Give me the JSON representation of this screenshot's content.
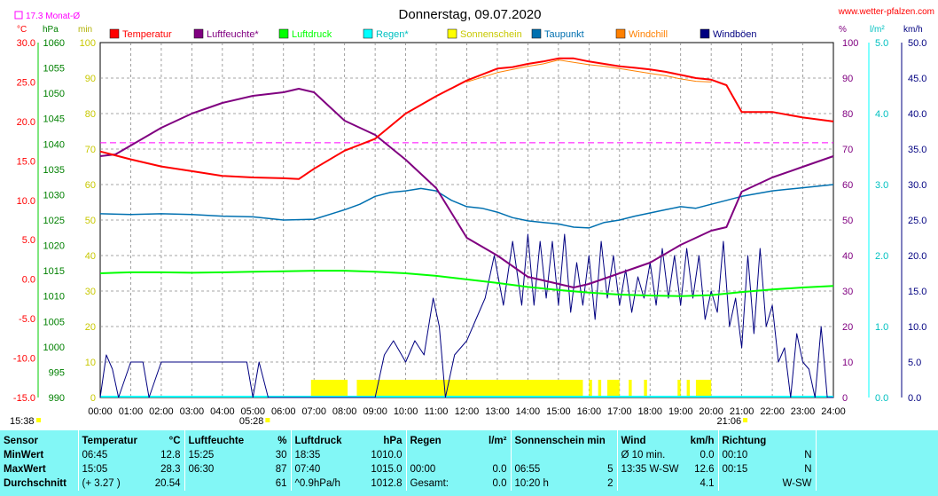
{
  "header": {
    "title": "Donnerstag, 09.07.2020",
    "website": "www.wetter-pfalzen.com",
    "monthly_avg": "17.3 Monat-Ø"
  },
  "chart_data": {
    "type": "line",
    "title": "Donnerstag, 09.07.2020",
    "x_ticks": [
      "00:00",
      "01:00",
      "02:00",
      "03:00",
      "04:00",
      "05:00",
      "06:00",
      "07:00",
      "08:00",
      "09:00",
      "10:00",
      "11:00",
      "12:00",
      "13:00",
      "14:00",
      "15:00",
      "16:00",
      "17:00",
      "18:00",
      "19:00",
      "20:00",
      "21:00",
      "22:00",
      "23:00",
      "24:00"
    ],
    "sunrise": "05:28",
    "sunset": "21:06",
    "last_update": "15:38",
    "axes": {
      "temp": {
        "unit": "°C",
        "range": [
          -15,
          30
        ],
        "ticks": [
          "30.0",
          "25.0",
          "20.0",
          "15.0",
          "10.0",
          "5.0",
          "0.0",
          "-5.0",
          "-10.0",
          "-15.0"
        ],
        "color": "#ff0000"
      },
      "pressure": {
        "unit": "hPa",
        "range": [
          990,
          1060
        ],
        "ticks": [
          "1060",
          "1055",
          "1050",
          "1045",
          "1040",
          "1035",
          "1030",
          "1025",
          "1020",
          "1015",
          "1010",
          "1005",
          "1000",
          "995",
          "990"
        ],
        "color": "#00b000"
      },
      "minutes": {
        "unit": "min",
        "range": [
          0,
          100
        ],
        "ticks": [
          "100",
          "90",
          "80",
          "70",
          "60",
          "50",
          "40",
          "30",
          "20",
          "10",
          "0"
        ],
        "color": "#b0b000"
      },
      "humidity": {
        "unit": "%",
        "range": [
          0,
          100
        ],
        "ticks": [
          "100",
          "90",
          "80",
          "70",
          "60",
          "50",
          "40",
          "30",
          "20",
          "10",
          "0"
        ],
        "color": "#800080"
      },
      "rain": {
        "unit": "l/m²",
        "range": [
          0,
          5
        ],
        "ticks": [
          "5.0",
          "4.0",
          "3.0",
          "2.0",
          "1.0",
          "0.0"
        ],
        "color": "#00c0c0"
      },
      "wind": {
        "unit": "km/h",
        "range": [
          0,
          50
        ],
        "ticks": [
          "50.0",
          "45.0",
          "40.0",
          "35.0",
          "30.0",
          "25.0",
          "20.0",
          "15.0",
          "10.0",
          "5.0",
          "0.0"
        ],
        "color": "#000080"
      }
    },
    "legend": [
      {
        "name": "Temperatur",
        "color": "#ff0000"
      },
      {
        "name": "Luftfeuchte*",
        "color": "#800080"
      },
      {
        "name": "Luftdruck",
        "color": "#00ff00"
      },
      {
        "name": "Regen*",
        "color": "#00ffff"
      },
      {
        "name": "Sonnenschein",
        "color": "#ffff00"
      },
      {
        "name": "Taupunkt",
        "color": "#0070b0"
      },
      {
        "name": "Windchill",
        "color": "#ff8000"
      },
      {
        "name": "Windböen",
        "color": "#000080"
      }
    ],
    "month_avg_temp": 17.3,
    "series": [
      {
        "name": "Temperatur",
        "axis": "temp",
        "color": "#ff0000",
        "x": [
          0,
          1,
          2,
          3,
          4,
          5,
          6,
          6.5,
          7,
          8,
          9,
          10,
          11,
          12,
          13,
          13.5,
          14,
          14.5,
          15,
          15.5,
          16,
          16.5,
          17,
          17.5,
          18,
          18.5,
          19,
          19.5,
          20,
          20.5,
          21,
          22,
          23,
          24
        ],
        "y": [
          16.2,
          15.2,
          14.3,
          13.7,
          13.1,
          12.9,
          12.8,
          12.7,
          14.0,
          16.3,
          17.8,
          21.0,
          23.2,
          25.2,
          26.7,
          26.9,
          27.3,
          27.6,
          28.0,
          28.0,
          27.6,
          27.3,
          27.0,
          26.8,
          26.6,
          26.3,
          25.9,
          25.5,
          25.3,
          24.6,
          21.2,
          21.2,
          20.5,
          20.0
        ]
      },
      {
        "name": "Windchill",
        "axis": "temp",
        "color": "#ff8000",
        "x": [
          12,
          13,
          14,
          14.5,
          15,
          15.5,
          16,
          16.5,
          17,
          17.5,
          18,
          18.5,
          19,
          19.5,
          20
        ],
        "y": [
          25.0,
          26.2,
          27.0,
          27.3,
          27.8,
          27.5,
          27.2,
          27.0,
          26.7,
          26.4,
          26.1,
          25.8,
          25.4,
          25.1,
          25.0
        ]
      },
      {
        "name": "Luftfeuchte*",
        "axis": "humidity",
        "color": "#800080",
        "x": [
          0,
          0.5,
          1,
          2,
          3,
          4,
          5,
          6,
          6.5,
          7,
          7.5,
          8,
          9,
          10,
          11,
          11.5,
          12,
          13,
          14,
          15,
          15.5,
          16,
          17,
          18,
          19,
          20,
          20.5,
          21,
          22,
          23,
          24
        ],
        "y": [
          68,
          68.5,
          71,
          76,
          80,
          83,
          85,
          86,
          87,
          86,
          82,
          78,
          74,
          67,
          59,
          52,
          45,
          40,
          34,
          32,
          31,
          32,
          35,
          38,
          43,
          47,
          48,
          58,
          62,
          65,
          68
        ]
      },
      {
        "name": "Luftdruck",
        "axis": "pressure",
        "color": "#00ff00",
        "x": [
          0,
          1,
          2,
          3,
          4,
          5,
          6,
          7,
          8,
          9,
          10,
          11,
          12,
          13,
          14,
          15,
          16,
          17,
          18,
          19,
          20,
          21,
          22,
          23,
          24
        ],
        "y": [
          1014.5,
          1014.7,
          1014.7,
          1014.6,
          1014.7,
          1014.8,
          1014.9,
          1015.0,
          1015.0,
          1014.8,
          1014.5,
          1014.0,
          1013.3,
          1012.6,
          1011.8,
          1011.2,
          1010.7,
          1010.3,
          1010.1,
          1010.0,
          1010.2,
          1010.8,
          1011.3,
          1011.7,
          1012.0
        ]
      },
      {
        "name": "Taupunkt",
        "axis": "temp",
        "color": "#0070b0",
        "x": [
          0,
          1,
          2,
          3,
          4,
          5,
          6,
          7,
          8,
          8.5,
          9,
          9.5,
          10,
          10.5,
          11,
          11.5,
          12,
          12.5,
          13,
          13.5,
          14,
          14.5,
          15,
          15.5,
          16,
          16.5,
          17,
          17.5,
          18,
          18.5,
          19,
          19.5,
          20,
          20.5,
          21,
          22,
          23,
          24
        ],
        "y": [
          8.3,
          8.2,
          8.3,
          8.2,
          8.0,
          7.9,
          7.5,
          7.6,
          8.8,
          9.5,
          10.5,
          11.0,
          11.2,
          11.5,
          11.2,
          10.0,
          9.2,
          9.0,
          8.5,
          7.8,
          7.4,
          7.2,
          7.0,
          6.6,
          6.5,
          7.2,
          7.5,
          8.0,
          8.4,
          8.8,
          9.2,
          9.0,
          9.5,
          10.0,
          10.5,
          11.2,
          11.6,
          12.0
        ]
      },
      {
        "name": "Windböen",
        "axis": "wind",
        "color": "#000080",
        "x": [
          0,
          0.2,
          0.4,
          0.6,
          1.0,
          1.4,
          1.6,
          2.0,
          2.4,
          2.8,
          3.2,
          3.5,
          4.0,
          4.5,
          4.8,
          5.0,
          5.2,
          5.5,
          5.8,
          6.0,
          6.5,
          7.0,
          7.5,
          8.0,
          8.5,
          8.8,
          9.0,
          9.3,
          9.6,
          10.0,
          10.3,
          10.6,
          10.9,
          11.1,
          11.3,
          11.6,
          12.0,
          12.3,
          12.6,
          12.9,
          13.2,
          13.5,
          13.8,
          14.0,
          14.2,
          14.4,
          14.6,
          14.8,
          15.0,
          15.2,
          15.4,
          15.6,
          15.8,
          16.0,
          16.2,
          16.4,
          16.6,
          16.8,
          17.0,
          17.2,
          17.4,
          17.6,
          17.8,
          18.0,
          18.2,
          18.4,
          18.6,
          18.8,
          19.0,
          19.2,
          19.4,
          19.6,
          19.8,
          20.0,
          20.2,
          20.4,
          20.6,
          20.8,
          21.0,
          21.2,
          21.4,
          21.6,
          21.8,
          22.0,
          22.2,
          22.4,
          22.6,
          22.8,
          23.0,
          23.2,
          23.4,
          23.6,
          23.8,
          24.0
        ],
        "y": [
          0,
          6,
          4,
          0,
          5,
          5,
          0,
          5,
          5,
          5,
          5,
          5,
          5,
          5,
          5,
          0,
          5,
          0,
          0,
          0,
          0,
          0,
          0,
          0,
          0,
          0,
          0,
          6,
          8,
          5,
          8,
          6,
          14,
          10,
          0,
          6,
          8,
          11,
          14,
          20,
          13,
          22,
          13,
          23,
          13,
          22,
          14,
          22,
          13,
          23,
          12,
          19,
          13,
          20,
          11,
          22,
          14,
          20,
          13,
          18,
          12,
          17,
          14,
          19,
          13,
          21,
          14,
          20,
          13,
          21,
          14,
          20,
          11,
          15,
          12,
          22,
          10,
          14,
          7,
          20,
          9,
          21,
          10,
          13,
          5,
          7,
          0,
          9,
          5,
          4,
          0,
          10,
          0,
          0
        ]
      }
    ],
    "sunshine_blocks": [
      [
        6.9,
        8.1
      ],
      [
        8.4,
        15.8
      ],
      [
        16.0,
        16.1
      ],
      [
        16.3,
        16.4
      ],
      [
        16.6,
        17.0
      ],
      [
        17.3,
        17.4
      ],
      [
        17.8,
        17.9
      ],
      [
        18.9,
        19.0
      ],
      [
        19.2,
        19.3
      ],
      [
        19.5,
        20.0
      ]
    ]
  },
  "stats": {
    "headers": [
      "Sensor",
      "Temperatur",
      "°C",
      "Luftfeuchte",
      "%",
      "Luftdruck",
      "hPa",
      "Regen",
      "l/m²",
      "Sonnenschein min",
      "Wind",
      "km/h",
      "Richtung"
    ],
    "rows": [
      {
        "label": "MinWert",
        "temp_time": "06:45",
        "temp_val": "12.8",
        "hum_time": "15:25",
        "hum_val": "30",
        "press_time": "18:35",
        "press_val": "1010.0",
        "rain_time": "",
        "rain_val": "",
        "sun_time": "",
        "sun_val": "",
        "wind_label": "Ø 10 min.",
        "wind_val": "0.0",
        "dir_time": "00:10",
        "dir_val": "N"
      },
      {
        "label": "MaxWert",
        "temp_time": "15:05",
        "temp_val": "28.3",
        "hum_time": "06:30",
        "hum_val": "87",
        "press_time": "07:40",
        "press_val": "1015.0",
        "rain_time": "00:00",
        "rain_val": "0.0",
        "sun_time": "06:55",
        "sun_val": "5",
        "wind_label": "13:35   W-SW",
        "wind_val": "12.6",
        "dir_time": "00:15",
        "dir_val": "N"
      },
      {
        "label": "Durchschnitt",
        "temp_time": "(+ 3.27 )",
        "temp_val": "20.54",
        "hum_time": "",
        "hum_val": "61",
        "press_time": "^0.9hPa/h",
        "press_val": "1012.8",
        "rain_time": "Gesamt:",
        "rain_val": "0.0",
        "sun_time": "10:20 h",
        "sun_val": "2",
        "wind_label": "",
        "wind_val": "4.1",
        "dir_time": "",
        "dir_val": "W-SW"
      }
    ]
  }
}
